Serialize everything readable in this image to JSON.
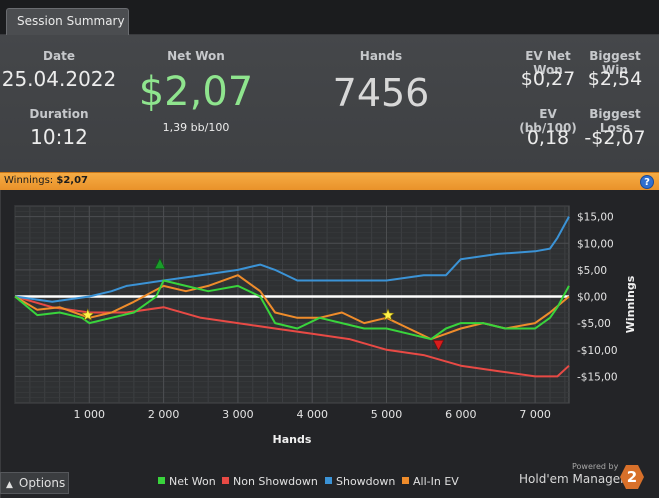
{
  "tab": {
    "label": "Session Summary"
  },
  "summary": {
    "date_label": "Date",
    "date_value": "25.04.2022",
    "duration_label": "Duration",
    "duration_value": "10:12",
    "net_won_label": "Net Won",
    "net_won_value": "$2,07",
    "bb_per_100": "1,39 bb/100",
    "hands_label": "Hands",
    "hands_value": "7456",
    "ev_net_won_label": "EV Net Won",
    "ev_net_won_value": "$0,27",
    "biggest_win_label": "Biggest Win",
    "biggest_win_value": "$2,54",
    "ev_bb_label": "EV (bb/100)",
    "ev_bb_value": "0,18",
    "biggest_loss_label": "Biggest Loss",
    "biggest_loss_value": "-$2,07"
  },
  "winnings_bar": {
    "label": "Winnings:",
    "value": "$2,07",
    "help_icon": "?"
  },
  "colors": {
    "net_won": "#39d43c",
    "non_showdown": "#e84a45",
    "showdown": "#3b93d6",
    "all_in_ev": "#ef8c2b",
    "accent": "#f0a23c"
  },
  "chart_data": {
    "type": "line",
    "xlabel": "Hands",
    "ylabel": "Winnings",
    "xlim": [
      0,
      7456
    ],
    "ylim": [
      -20,
      17
    ],
    "x_ticks": [
      "1 000",
      "2 000",
      "3 000",
      "4 000",
      "5 000",
      "6 000",
      "7 000"
    ],
    "y_ticks": [
      "$15,00",
      "$10,00",
      "$5,00",
      "$0,00",
      "-$5,00",
      "-$10,00",
      "-$15,00"
    ],
    "grid": true,
    "legend_position": "bottom",
    "series": [
      {
        "name": "Net Won",
        "x": [
          0,
          300,
          600,
          900,
          1000,
          1300,
          1600,
          1900,
          2000,
          2300,
          2600,
          3000,
          3300,
          3500,
          3800,
          4100,
          4400,
          4700,
          5000,
          5300,
          5600,
          5800,
          6000,
          6300,
          6600,
          7000,
          7200,
          7300,
          7456
        ],
        "y": [
          0,
          -3.5,
          -3,
          -4,
          -5,
          -4,
          -3,
          0,
          3,
          2,
          1,
          2,
          0,
          -5,
          -6,
          -4,
          -5,
          -6,
          -6,
          -7,
          -8,
          -6,
          -5,
          -5,
          -6,
          -6,
          -4,
          -2,
          2
        ]
      },
      {
        "name": "Non Showdown",
        "x": [
          0,
          500,
          1000,
          1500,
          2000,
          2500,
          3000,
          3500,
          4000,
          4500,
          5000,
          5500,
          6000,
          6500,
          7000,
          7300,
          7456
        ],
        "y": [
          0,
          -2,
          -3,
          -3,
          -2,
          -4,
          -5,
          -6,
          -7,
          -8,
          -10,
          -11,
          -13,
          -14,
          -15,
          -15,
          -13
        ]
      },
      {
        "name": "Showdown",
        "x": [
          0,
          500,
          1000,
          1300,
          1500,
          2000,
          2500,
          3000,
          3300,
          3500,
          3800,
          4500,
          5000,
          5500,
          5800,
          6000,
          6500,
          7000,
          7200,
          7300,
          7456
        ],
        "y": [
          0,
          -1,
          0,
          1,
          2,
          3,
          4,
          5,
          6,
          5,
          3,
          3,
          3,
          4,
          4,
          7,
          8,
          8.5,
          9,
          11,
          15
        ]
      },
      {
        "name": "All-In EV",
        "x": [
          0,
          300,
          600,
          1000,
          1300,
          1600,
          2000,
          2300,
          2600,
          3000,
          3300,
          3500,
          3800,
          4100,
          4400,
          4700,
          5000,
          5300,
          5600,
          5800,
          6000,
          6300,
          6600,
          7000,
          7200,
          7456
        ],
        "y": [
          0,
          -2.5,
          -2,
          -4,
          -3,
          -1,
          2,
          1,
          2,
          4,
          1,
          -3,
          -4,
          -4,
          -3,
          -5,
          -4,
          -6,
          -8,
          -7,
          -6,
          -5,
          -6,
          -5,
          -3,
          0
        ]
      }
    ],
    "markers": [
      {
        "type": "star",
        "x": 980,
        "y": -3.5
      },
      {
        "type": "star",
        "x": 5020,
        "y": -3.5
      },
      {
        "type": "triangle-up",
        "x": 1950,
        "y": 6
      },
      {
        "type": "triangle-down",
        "x": 5700,
        "y": -9
      }
    ]
  },
  "legend": [
    {
      "label": "Net Won",
      "color": "#39d43c"
    },
    {
      "label": "Non Showdown",
      "color": "#e84a45"
    },
    {
      "label": "Showdown",
      "color": "#3b93d6"
    },
    {
      "label": "All-In EV",
      "color": "#ef8c2b"
    }
  ],
  "footer": {
    "options_label": "Options",
    "options_icon": "caret-up-icon",
    "powered_by": "Powered by",
    "brand": "Hold'em Manager",
    "brand_badge": "2"
  }
}
